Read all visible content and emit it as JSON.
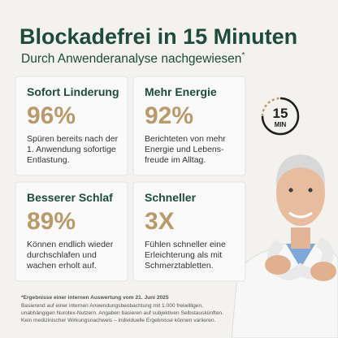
{
  "header": {
    "title": "Blockadefrei in 15 Minuten",
    "subtitle": "Durch Anwenderanalyse nachgewiesen",
    "note_marker": "*"
  },
  "cards": [
    {
      "heading": "Sofort Linderung",
      "stat": "96%",
      "lines": [
        "Spüren bereits nach der",
        "1. Anwendung sofortige",
        "Entlastung."
      ]
    },
    {
      "heading": "Mehr Energie",
      "stat": "92%",
      "lines": [
        "Berichteten von mehr",
        "Energie und Lebens-",
        "freude im Alltag."
      ]
    },
    {
      "heading": "Besserer Schlaf",
      "stat": "89%",
      "lines": [
        "Können endlich wieder",
        "durchschlafen und",
        "wachen erholt auf."
      ]
    },
    {
      "heading": "Schneller",
      "stat": "3X",
      "lines": [
        "Fühlen schneller eine",
        "Erleichterung als mit",
        "Schmerztabletten."
      ]
    }
  ],
  "badge": {
    "number": "15",
    "unit": "MIN"
  },
  "footnote": {
    "title": "*Ergebnisse einer internen Auswertung vom 21. Juni 2025",
    "lines": [
      "Basierend auf einer internen Anwendungsbeobachtung mit 1.000 freiwilligen,",
      "unabhängigen Nurotex-Nutzern. Angaben basieren auf subjektiven Selbstauskünften.",
      "Kein medizinischer Wirkungsnachweis – individuelle Ergebnisse können variieren."
    ]
  }
}
